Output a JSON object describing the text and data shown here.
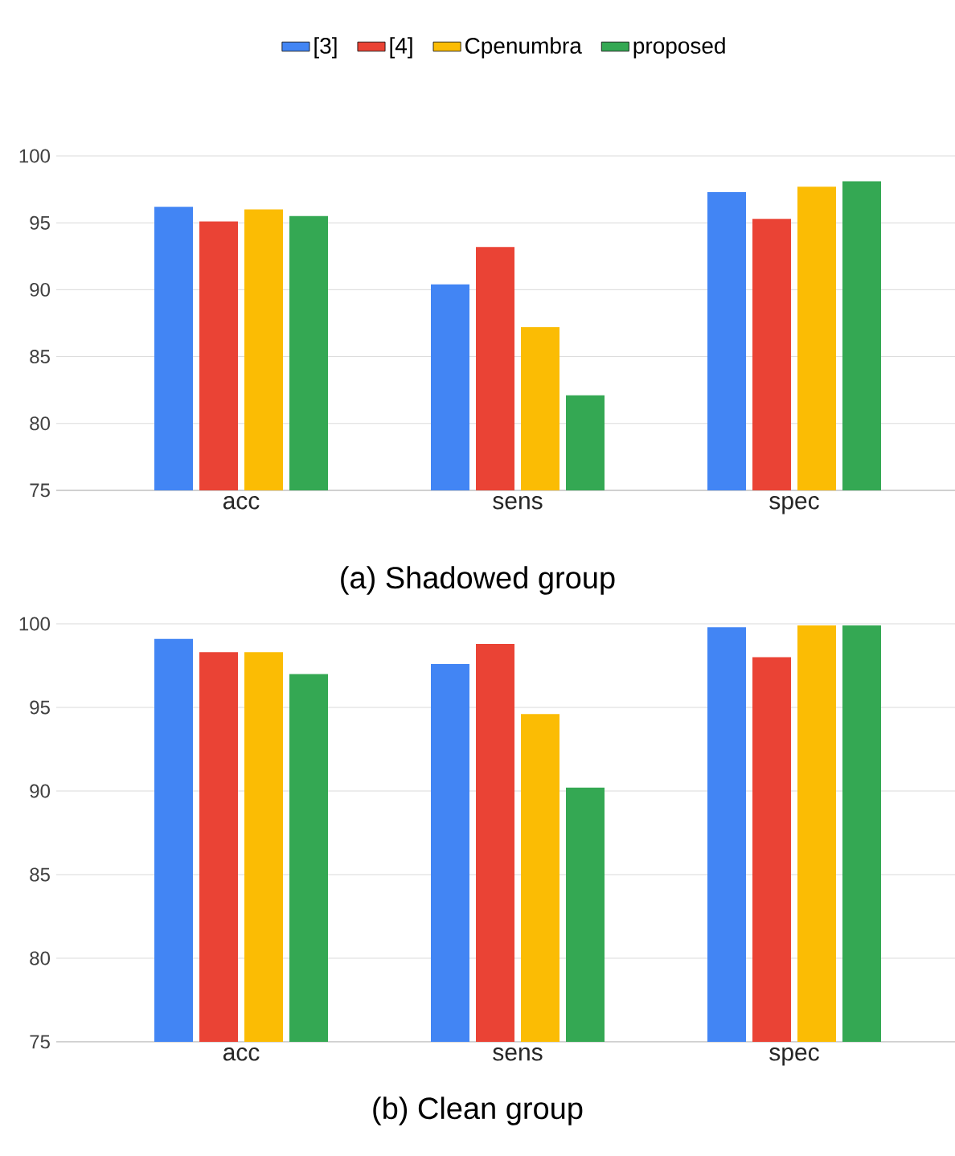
{
  "chart_data": [
    {
      "type": "bar",
      "categories": [
        "acc",
        "sens",
        "spec"
      ],
      "annotations": [
        "(a) Shadowed group"
      ],
      "ylim": [
        75,
        100
      ],
      "yticks": [
        75,
        80,
        85,
        90,
        95,
        100
      ],
      "grid": "y",
      "legend": "top",
      "series": [
        {
          "name": "[3]",
          "color": "#4285f4",
          "values": [
            96.2,
            90.4,
            97.3
          ]
        },
        {
          "name": "[4]",
          "color": "#ea4335",
          "values": [
            95.1,
            93.2,
            95.3
          ]
        },
        {
          "name": "Cpenumbra",
          "color": "#fbbc04",
          "values": [
            96.0,
            87.2,
            97.7
          ]
        },
        {
          "name": "proposed",
          "color": "#34a853",
          "values": [
            95.5,
            82.1,
            98.1
          ]
        }
      ]
    },
    {
      "type": "bar",
      "categories": [
        "acc",
        "sens",
        "spec"
      ],
      "annotations": [
        "(b) Clean group"
      ],
      "ylim": [
        75,
        100
      ],
      "yticks": [
        75,
        80,
        85,
        90,
        95,
        100
      ],
      "grid": "y",
      "series": [
        {
          "color": "#4285f4",
          "values": [
            99.1,
            97.6,
            99.8
          ]
        },
        {
          "color": "#ea4335",
          "values": [
            98.3,
            98.8,
            98.0
          ]
        },
        {
          "color": "#fbbc04",
          "values": [
            98.3,
            94.6,
            99.9
          ]
        },
        {
          "color": "#34a853",
          "values": [
            97.0,
            90.2,
            99.9
          ]
        }
      ]
    }
  ]
}
